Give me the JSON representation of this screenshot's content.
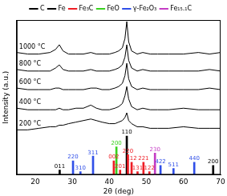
{
  "chart_data": {
    "type": "line",
    "xlabel": "2θ (deg)",
    "ylabel": "Intensity (a.u.)",
    "xlim": [
      15,
      70
    ],
    "xticks": [
      20,
      30,
      40,
      50,
      60,
      70
    ],
    "ylim": [
      0,
      100
    ],
    "tick_labels": "x",
    "grid": false,
    "legend": "top",
    "x": [
      15,
      18,
      21,
      24,
      25.5,
      26.5,
      27.5,
      29,
      31,
      33,
      35,
      36.5,
      38,
      40,
      41.5,
      42.5,
      43.5,
      44.2,
      44.7,
      45.2,
      46,
      47.5,
      49,
      51,
      53,
      56,
      60,
      64,
      67,
      70
    ],
    "series": [
      {
        "name": "1000 °C",
        "color": "#000000",
        "values": [
          79,
          78,
          78,
          79,
          81,
          84,
          80,
          78,
          78,
          78,
          79,
          78,
          78,
          78,
          79,
          80,
          82,
          88,
          99,
          86,
          80,
          78,
          79,
          78,
          78,
          78,
          78,
          79,
          78,
          79
        ]
      },
      {
        "name": "800 °C",
        "color": "#000000",
        "values": [
          68,
          67,
          67,
          67,
          69,
          71,
          68,
          67,
          67,
          67,
          68,
          67,
          67,
          67,
          68,
          69,
          71,
          76,
          84,
          74,
          69,
          67,
          68,
          67,
          67,
          67,
          67,
          67,
          68,
          67
        ]
      },
      {
        "name": "600 °C",
        "color": "#000000",
        "values": [
          56,
          55,
          55,
          55,
          56,
          56,
          55,
          55,
          55,
          55,
          56,
          56,
          55,
          55,
          56,
          57,
          59,
          64,
          72,
          62,
          57,
          55,
          56,
          55,
          55,
          55,
          55,
          55,
          56,
          55
        ]
      },
      {
        "name": "400 °C",
        "color": "#000000",
        "values": [
          43,
          42,
          42,
          42,
          42,
          43,
          42,
          42,
          43,
          43,
          45,
          43,
          42,
          42,
          43,
          44,
          46,
          51,
          57,
          49,
          44,
          42,
          43,
          42,
          42,
          42,
          43,
          42,
          42,
          42
        ]
      },
      {
        "name": "200 °C",
        "color": "#000000",
        "values": [
          29,
          29,
          30,
          31,
          31,
          32,
          32,
          33,
          34,
          35,
          36,
          35,
          34,
          33,
          33,
          34,
          35,
          37,
          40,
          35,
          33,
          31,
          31,
          30,
          30,
          30,
          31,
          30,
          30,
          30
        ]
      }
    ],
    "phases": [
      {
        "name": "C",
        "color": "#000000"
      },
      {
        "name": "Fe",
        "color": "#000000"
      },
      {
        "name": "Fe₃C",
        "color": "#ee1c24"
      },
      {
        "name": "FeO",
        "color": "#39d21f"
      },
      {
        "name": "γ-Fe₂O₃",
        "color": "#2f4fe8"
      },
      {
        "name": "Fe₁₅.₁C",
        "color": "#c43cc4"
      }
    ],
    "sticks": [
      {
        "x": 26.6,
        "height": 3,
        "phase": "C",
        "label": "011"
      },
      {
        "x": 30.2,
        "height": 9,
        "phase": "γ-Fe₂O₃",
        "label": "220"
      },
      {
        "x": 32.2,
        "height": 2,
        "phase": "γ-Fe₂O₃",
        "label": "310"
      },
      {
        "x": 35.6,
        "height": 12,
        "phase": "γ-Fe₂O₃",
        "label": "311"
      },
      {
        "x": 41.2,
        "height": 9,
        "phase": "Fe₃C",
        "label": "002"
      },
      {
        "x": 41.9,
        "height": 18,
        "phase": "FeO",
        "label": "200"
      },
      {
        "x": 42.9,
        "height": 3,
        "phase": "Fe₃C",
        "label": "201"
      },
      {
        "x": 44.7,
        "height": 25,
        "phase": "Fe",
        "label": "110"
      },
      {
        "x": 45.0,
        "height": 13,
        "phase": "Fe₃C",
        "label": "220"
      },
      {
        "x": 46.0,
        "height": 8,
        "phase": "Fe₃C",
        "label": "112"
      },
      {
        "x": 47.6,
        "height": 2,
        "phase": "Fe₃C",
        "label": "131"
      },
      {
        "x": 49.2,
        "height": 8,
        "phase": "Fe₃C",
        "label": "221"
      },
      {
        "x": 50.8,
        "height": 2,
        "phase": "Fe₃C",
        "label": "122"
      },
      {
        "x": 52.3,
        "height": 14,
        "phase": "Fe₁₅.₁C",
        "label": "230"
      },
      {
        "x": 53.8,
        "height": 6,
        "phase": "γ-Fe₂O₃",
        "label": "422"
      },
      {
        "x": 57.3,
        "height": 4,
        "phase": "γ-Fe₂O₃",
        "label": "511"
      },
      {
        "x": 62.9,
        "height": 8,
        "phase": "γ-Fe₂O₃",
        "label": "440"
      },
      {
        "x": 68.0,
        "height": 6,
        "phase": "Fe",
        "label": "200"
      }
    ]
  }
}
